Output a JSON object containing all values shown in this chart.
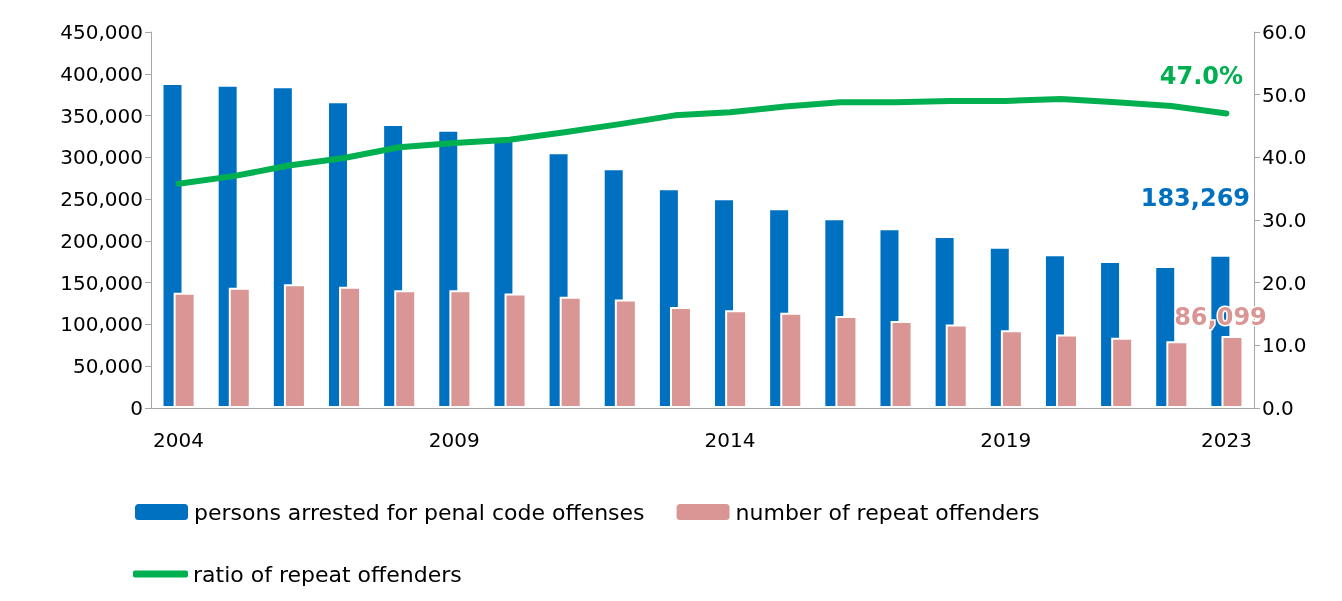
{
  "chart_data": {
    "type": "bar",
    "categories": [
      "2004",
      null,
      null,
      null,
      null,
      "2009",
      null,
      null,
      null,
      null,
      "2014",
      null,
      null,
      null,
      null,
      "2019",
      null,
      null,
      null,
      "2023"
    ],
    "series": [
      {
        "name": "persons arrested for penal code offenses",
        "color": "#0070c0",
        "values": [
          389000,
          387000,
          385000,
          367000,
          340000,
          333000,
          322000,
          306000,
          287000,
          263000,
          251000,
          239000,
          227000,
          215000,
          206000,
          193000,
          184000,
          176000,
          170000,
          183269
        ],
        "value_labels": [
          null,
          null,
          null,
          null,
          null,
          null,
          null,
          null,
          null,
          null,
          null,
          null,
          null,
          null,
          null,
          null,
          null,
          null,
          null,
          "183,269"
        ]
      },
      {
        "name": "number of repeat offenders",
        "color": "#d99694",
        "values": [
          138000,
          144000,
          148000,
          145000,
          141000,
          141000,
          137000,
          133000,
          130000,
          121000,
          117000,
          114000,
          110000,
          104000,
          100000,
          93000,
          88000,
          84000,
          80000,
          86099
        ],
        "value_labels": [
          null,
          null,
          null,
          null,
          null,
          null,
          null,
          null,
          null,
          null,
          null,
          null,
          null,
          null,
          null,
          null,
          null,
          null,
          null,
          "86,099"
        ]
      },
      {
        "name": "ratio of repeat offenders",
        "type": "line",
        "axis": "y2",
        "color": "#00b050",
        "values": [
          35.8,
          37.0,
          38.7,
          39.9,
          41.6,
          42.3,
          42.8,
          44.0,
          45.3,
          46.7,
          47.2,
          48.1,
          48.8,
          48.8,
          49.0,
          49.0,
          49.3,
          48.8,
          48.2,
          47.0
        ],
        "value_labels": [
          null,
          null,
          null,
          null,
          null,
          null,
          null,
          null,
          null,
          null,
          null,
          null,
          null,
          null,
          null,
          null,
          null,
          null,
          null,
          "47.0%"
        ]
      }
    ],
    "ylim": [
      0,
      450000
    ],
    "yticks": [
      0,
      {
        "value": 50000,
        "label": "50,000"
      },
      {
        "value": 100000,
        "label": "100,000"
      },
      {
        "value": 150000,
        "label": "150,000"
      },
      {
        "value": 200000,
        "label": "200,000"
      },
      {
        "value": 250000,
        "label": "250,000"
      },
      {
        "value": 300000,
        "label": "300,000"
      },
      {
        "value": 350000,
        "label": "350,000"
      },
      {
        "value": 400000,
        "label": "400,000"
      },
      {
        "value": 450000,
        "label": "450,000"
      }
    ],
    "y2lim": [
      0,
      60
    ],
    "y2ticks": [
      {
        "value": 0,
        "label": "0.0"
      },
      {
        "value": 10,
        "label": "10.0"
      },
      {
        "value": 20,
        "label": "20.0"
      },
      {
        "value": 30,
        "label": "30.0"
      },
      {
        "value": 40,
        "label": "40.0"
      },
      {
        "value": 50,
        "label": "50.0"
      },
      {
        "value": 60,
        "label": "60.0"
      }
    ],
    "grid": false,
    "legend": "bottom",
    "marker": "none",
    "line_style": "solid"
  }
}
